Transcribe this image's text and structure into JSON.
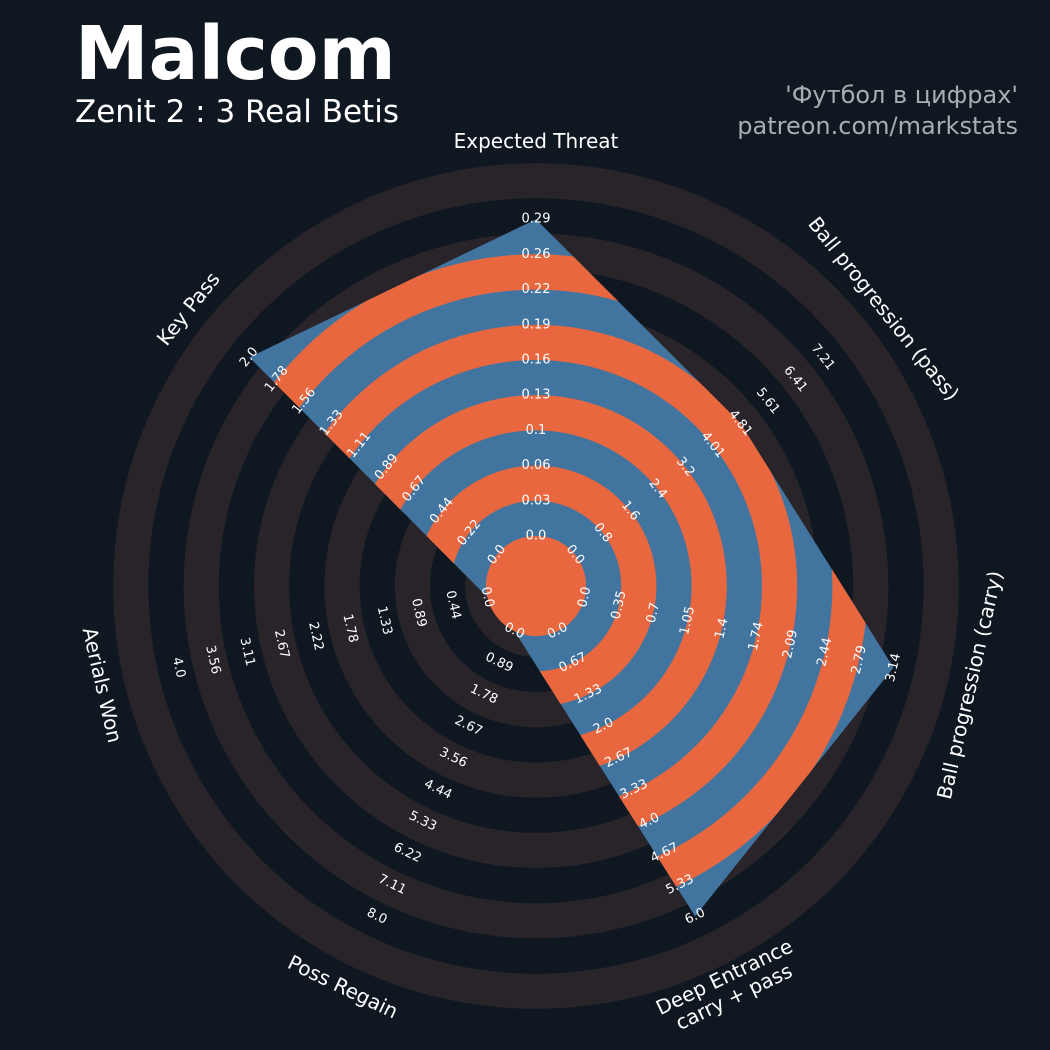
{
  "header": {
    "title": "Malcom",
    "subtitle": "Zenit 2 : 3 Real Betis",
    "credit_line1": "'Футбол в цифрах'",
    "credit_line2": "patreon.com/markstats"
  },
  "colors": {
    "background": "#0f1820",
    "ring_dark": "#28242a",
    "ring_orange": "#e8673f",
    "fill_blue": "#4274a0"
  },
  "chart_data": {
    "type": "radar",
    "title": "Malcom",
    "subtitle": "Zenit 2 : 3 Real Betis",
    "parameters": [
      {
        "name": "Expected Threat",
        "lines": [
          "Expected Threat"
        ],
        "min": 0.0,
        "max": 0.29,
        "value": 0.29,
        "ticks": [
          "0.0",
          "0.03",
          "0.06",
          "0.1",
          "0.13",
          "0.16",
          "0.19",
          "0.22",
          "0.26",
          "0.29"
        ]
      },
      {
        "name": "Ball progression (pass)",
        "lines": [
          "Ball progression (pass)"
        ],
        "min": 0.0,
        "max": 7.21,
        "value": 4.81,
        "ticks": [
          "0.0",
          "0.8",
          "1.6",
          "2.4",
          "3.2",
          "4.01",
          "4.81",
          "5.61",
          "6.41",
          "7.21"
        ]
      },
      {
        "name": "Ball progression (carry)",
        "lines": [
          "Ball progression (carry)"
        ],
        "min": 0.0,
        "max": 3.14,
        "value": 3.14,
        "ticks": [
          "0.0",
          "0.35",
          "0.7",
          "1.05",
          "1.4",
          "1.74",
          "2.09",
          "2.44",
          "2.79",
          "3.14"
        ]
      },
      {
        "name": "Deep Entrance carry + pass",
        "lines": [
          "Deep Entrance",
          "carry + pass"
        ],
        "min": 0.0,
        "max": 6.0,
        "value": 6.0,
        "ticks": [
          "0.0",
          "0.67",
          "1.33",
          "2.0",
          "2.67",
          "3.33",
          "4.0",
          "4.67",
          "5.33",
          "6.0"
        ]
      },
      {
        "name": "Poss Regain",
        "lines": [
          "Poss Regain"
        ],
        "min": 0.0,
        "max": 8.0,
        "value": 0.0,
        "ticks": [
          "0.0",
          "0.89",
          "1.78",
          "2.67",
          "3.56",
          "4.44",
          "5.33",
          "6.22",
          "7.11",
          "8.0"
        ]
      },
      {
        "name": "Aerials Won",
        "lines": [
          "Aerials Won"
        ],
        "min": 0.0,
        "max": 4.0,
        "value": 0.0,
        "ticks": [
          "0.0",
          "0.44",
          "0.89",
          "1.33",
          "1.78",
          "2.22",
          "2.67",
          "3.11",
          "3.56",
          "4.0"
        ]
      },
      {
        "name": "Key Pass",
        "lines": [
          "Key Pass"
        ],
        "min": 0.0,
        "max": 2.0,
        "value": 2.0,
        "ticks": [
          "0.0",
          "0.22",
          "0.44",
          "0.67",
          "0.89",
          "1.11",
          "1.33",
          "1.56",
          "1.78",
          "2.0"
        ]
      }
    ]
  }
}
